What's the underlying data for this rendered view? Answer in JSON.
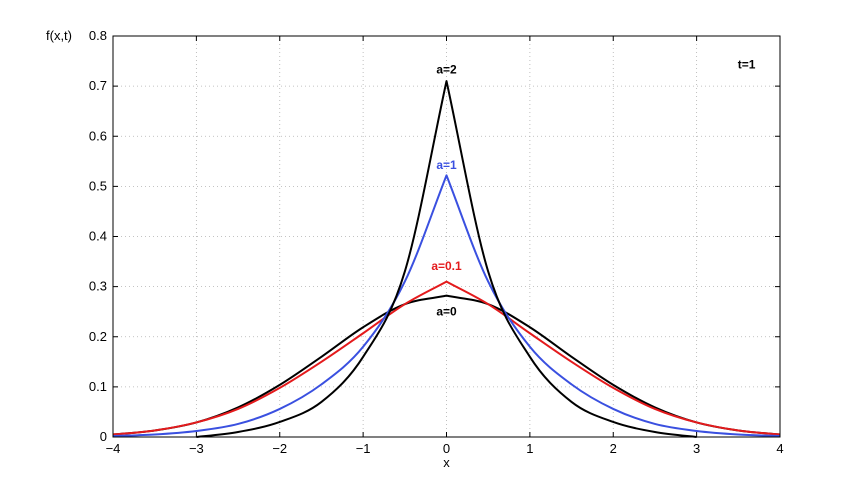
{
  "chart_data": {
    "type": "line",
    "title": "",
    "xlabel": "x",
    "ylabel": "f(x,t)",
    "xlim": [
      -4,
      4
    ],
    "ylim": [
      0,
      0.8
    ],
    "xticks": [
      -4,
      -3,
      -2,
      -1,
      0,
      1,
      2,
      3,
      4
    ],
    "xtick_labels": [
      "−4",
      "−3",
      "−2",
      "−1",
      "0",
      "1",
      "2",
      "3",
      "4"
    ],
    "yticks": [
      0,
      0.1,
      0.2,
      0.3,
      0.4,
      0.5,
      0.6,
      0.7,
      0.8
    ],
    "ytick_labels": [
      "0",
      "0.1",
      "0.2",
      "0.3",
      "0.4",
      "0.5",
      "0.6",
      "0.7",
      "0.8"
    ],
    "grid": true,
    "series": [
      {
        "name": "a=0",
        "color": "#000000",
        "x": [
          -4,
          -3.5,
          -3,
          -2.5,
          -2,
          -1.5,
          -1,
          -0.5,
          0,
          0.5,
          1,
          1.5,
          2,
          2.5,
          3,
          3.5,
          4
        ],
        "y": [
          0.005,
          0.013,
          0.029,
          0.059,
          0.104,
          0.16,
          0.219,
          0.265,
          0.282,
          0.265,
          0.219,
          0.16,
          0.104,
          0.059,
          0.029,
          0.013,
          0.005
        ]
      },
      {
        "name": "a=0.1",
        "color": "#e41a1c",
        "x": [
          -4,
          -3.5,
          -3,
          -2.5,
          -2,
          -1.5,
          -1,
          -0.5,
          0,
          0.5,
          1,
          1.5,
          2,
          2.5,
          3,
          3.5,
          4
        ],
        "y": [
          0.005,
          0.013,
          0.029,
          0.056,
          0.098,
          0.15,
          0.207,
          0.265,
          0.31,
          0.265,
          0.207,
          0.15,
          0.098,
          0.056,
          0.029,
          0.013,
          0.005
        ]
      },
      {
        "name": "a=1",
        "color": "#3a50e0",
        "x": [
          -4,
          -3.5,
          -3,
          -2.5,
          -2,
          -1.5,
          -1,
          -0.5,
          0,
          0.5,
          1,
          1.5,
          2,
          2.5,
          3,
          3.5,
          4
        ],
        "y": [
          0.002,
          0.005,
          0.012,
          0.026,
          0.056,
          0.105,
          0.18,
          0.31,
          0.522,
          0.31,
          0.18,
          0.105,
          0.056,
          0.026,
          0.012,
          0.005,
          0.002
        ]
      },
      {
        "name": "a=2",
        "color": "#000000",
        "x": [
          -3,
          -2.5,
          -2,
          -1.5,
          -1,
          -0.5,
          0,
          0.5,
          1,
          1.5,
          2,
          2.5,
          3
        ],
        "y": [
          0.0,
          0.01,
          0.03,
          0.07,
          0.16,
          0.33,
          0.71,
          0.33,
          0.16,
          0.07,
          0.03,
          0.01,
          0.0
        ]
      }
    ],
    "annotations": [
      {
        "text": "a=2",
        "x": 0,
        "y": 0.725,
        "color": "#000000"
      },
      {
        "text": "a=1",
        "x": 0,
        "y": 0.535,
        "color": "#3a50e0"
      },
      {
        "text": "a=0.1",
        "x": 0,
        "y": 0.333,
        "color": "#e41a1c"
      },
      {
        "text": "a=0",
        "x": 0,
        "y": 0.242,
        "color": "#000000"
      },
      {
        "text": "t=1",
        "x": 3.6,
        "y": 0.735,
        "color": "#000000"
      }
    ]
  }
}
